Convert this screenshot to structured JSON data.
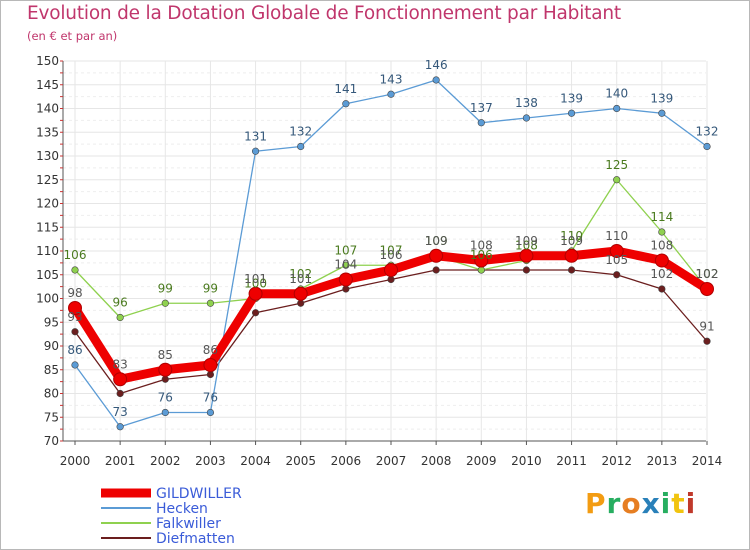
{
  "title": "Evolution de la Dotation Globale de Fonctionnement par Habitant",
  "subtitle": "(en € et par an)",
  "logo": {
    "letters": [
      "P",
      "r",
      "o",
      "x",
      "i",
      "t",
      "i"
    ],
    "colors": [
      "#f39c12",
      "#27ae60",
      "#e67e22",
      "#2980b9",
      "#27ae60",
      "#f1c40f",
      "#c0392b"
    ]
  },
  "chart_data": {
    "type": "line",
    "title": "Evolution de la Dotation Globale de Fonctionnement par Habitant",
    "subtitle": "(en € et par an)",
    "x": [
      "2000",
      "2001",
      "2002",
      "2003",
      "2004",
      "2005",
      "2006",
      "2007",
      "2008",
      "2009",
      "2010",
      "2011",
      "2012",
      "2013",
      "2014"
    ],
    "ylim": [
      70,
      150
    ],
    "yticks": [
      70,
      75,
      80,
      85,
      90,
      95,
      100,
      105,
      110,
      115,
      120,
      125,
      130,
      135,
      140,
      145,
      150
    ],
    "grid": true,
    "legend_position": "bottom-left",
    "series": [
      {
        "name": "Diefmatten",
        "color": "#6b1e1e",
        "values": [
          93,
          80,
          83,
          84,
          97,
          99,
          102,
          104,
          106,
          106,
          106,
          106,
          105,
          102,
          91
        ],
        "labels": [
          "93",
          "",
          "",
          "",
          "",
          "",
          "",
          "",
          "",
          "",
          "",
          "",
          "105",
          "102",
          "91"
        ]
      },
      {
        "name": "Falkwiller",
        "color": "#8fd14f",
        "values": [
          106,
          96,
          99,
          99,
          100,
          102,
          107,
          107,
          109,
          106,
          108,
          110,
          125,
          114,
          102
        ],
        "labels": [
          "106",
          "96",
          "99",
          "99",
          "100",
          "102",
          "107",
          "107",
          "109",
          "106",
          "108",
          "110",
          "125",
          "114",
          "102"
        ]
      },
      {
        "name": "Hecken",
        "color": "#5b9bd5",
        "values": [
          86,
          73,
          76,
          76,
          131,
          132,
          141,
          143,
          146,
          137,
          138,
          139,
          140,
          139,
          132
        ],
        "labels": [
          "86",
          "73",
          "76",
          "76",
          "131",
          "132",
          "141",
          "143",
          "146",
          "137",
          "138",
          "139",
          "140",
          "139",
          "132"
        ]
      },
      {
        "name": "GILDWILLER",
        "color": "#ee0000",
        "values": [
          98,
          83,
          85,
          86,
          101,
          101,
          104,
          106,
          109,
          108,
          109,
          109,
          110,
          108,
          102
        ],
        "labels": [
          "98",
          "83",
          "85",
          "86",
          "101",
          "101",
          "104",
          "106",
          "109",
          "108",
          "109",
          "109",
          "110",
          "108",
          "102"
        ]
      }
    ],
    "legend": [
      {
        "name": "GILDWILLER",
        "color": "#ee0000"
      },
      {
        "name": "Hecken",
        "color": "#5b9bd5"
      },
      {
        "name": "Falkwiller",
        "color": "#8fd14f"
      },
      {
        "name": "Diefmatten",
        "color": "#6b1e1e"
      }
    ]
  }
}
